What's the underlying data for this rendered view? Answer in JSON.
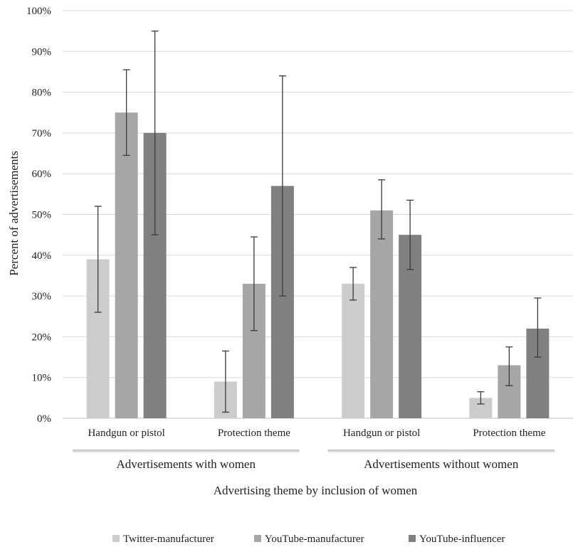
{
  "chart_data": {
    "type": "bar",
    "categories": [
      "Handgun or pistol",
      "Protection theme",
      "Handgun or pistol",
      "Protection theme"
    ],
    "groups": [
      {
        "label": "Advertisements with women",
        "categories": [
          0,
          1
        ]
      },
      {
        "label": "Advertisements without women",
        "categories": [
          2,
          3
        ]
      }
    ],
    "series": [
      {
        "name": "Twitter-manufacturer",
        "color": "#cccccc",
        "values": [
          39,
          9,
          33,
          5
        ],
        "error_low": [
          26,
          1.5,
          29,
          3.5
        ],
        "error_high": [
          52,
          16.5,
          37,
          6.5
        ]
      },
      {
        "name": "YouTube-manufacturer",
        "color": "#a6a6a6",
        "values": [
          75,
          33,
          51,
          13
        ],
        "error_low": [
          64.5,
          21.5,
          44,
          8
        ],
        "error_high": [
          85.5,
          44.5,
          58.5,
          17.5
        ]
      },
      {
        "name": "YouTube-influencer",
        "color": "#808080",
        "values": [
          70,
          57,
          45,
          22
        ],
        "error_low": [
          45,
          30,
          36.5,
          15
        ],
        "error_high": [
          95,
          84,
          53.5,
          29.5
        ]
      }
    ],
    "yticks": [
      "0%",
      "10%",
      "20%",
      "30%",
      "40%",
      "50%",
      "60%",
      "70%",
      "80%",
      "90%",
      "100%"
    ],
    "ylim": [
      0,
      100
    ],
    "ylabel": "Percent of advertisements",
    "xlabel": "Advertising theme by inclusion of women",
    "grid": true,
    "legend_position": "bottom"
  }
}
